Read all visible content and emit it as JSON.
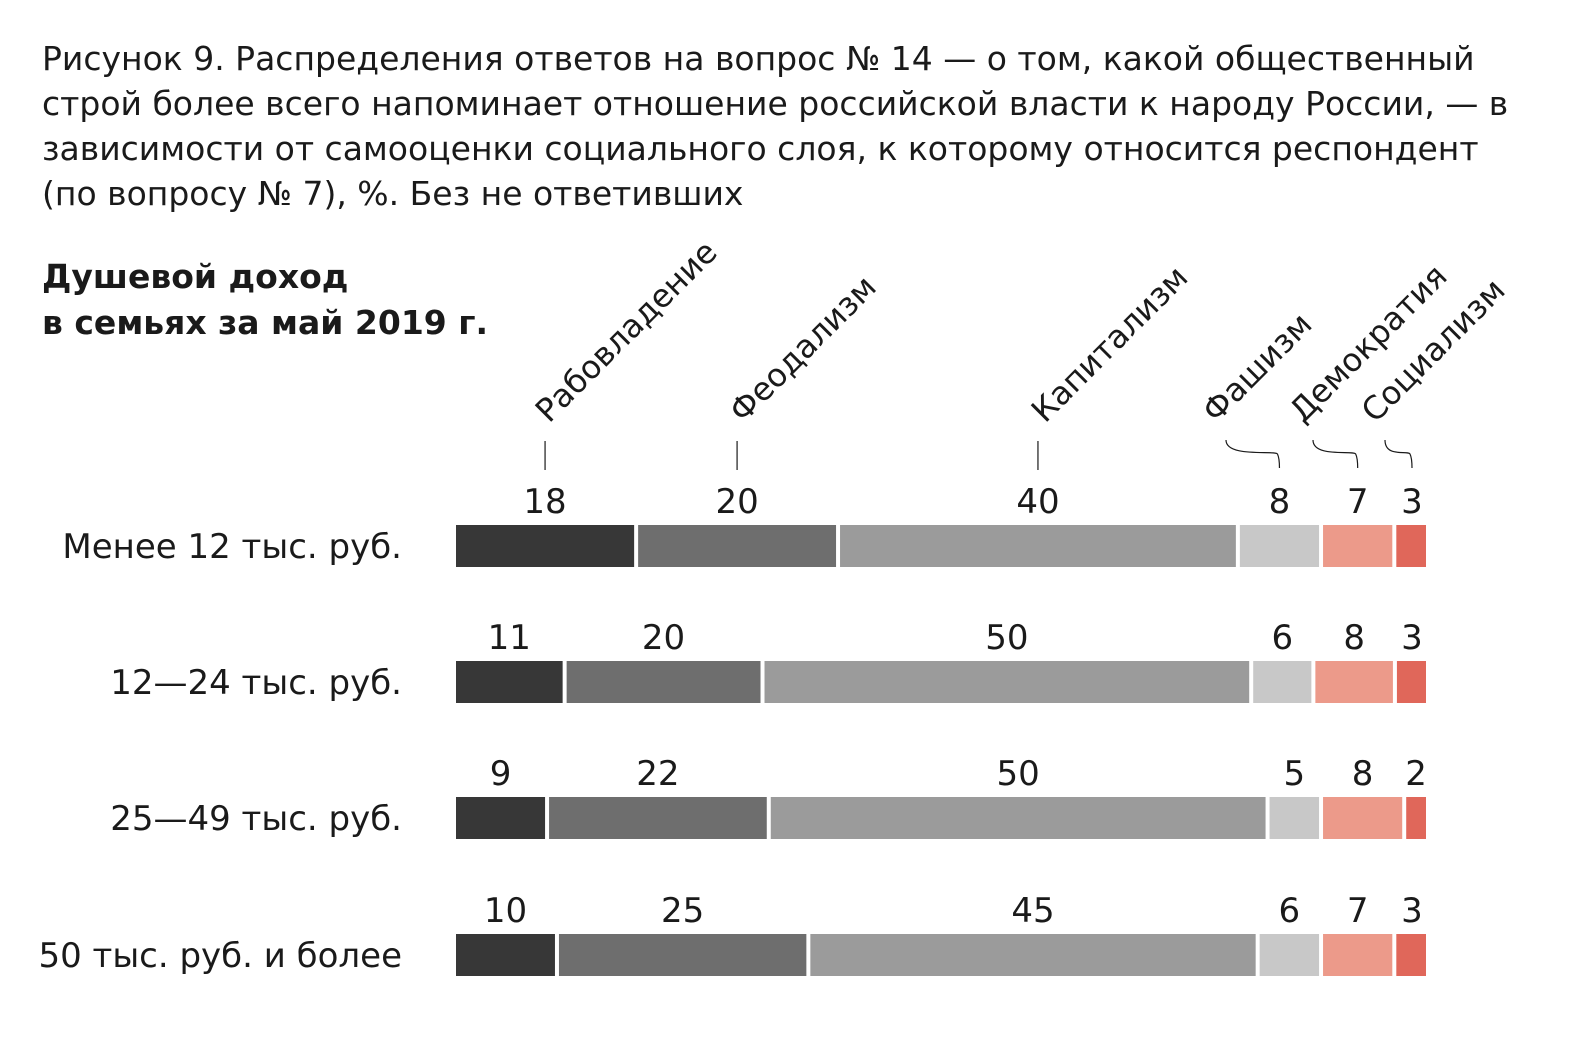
{
  "caption": "Рисунок 9. Распределения ответов на вопрос № 14 — о том, какой общественный строй более всего напоминает отношение российской власти к народу России, — в зависимости от самооценки социального слоя, к которому относится респондент (по вопросу № 7), %. Без не ответивших",
  "subtitle_line1": "Душевой доход",
  "subtitle_line2": "в семьях за май 2019 г.",
  "chart_data": {
    "type": "bar",
    "orientation": "horizontal",
    "stacked": true,
    "categories": [
      "Менее 12 тыс. руб.",
      "12—24 тыс. руб.",
      "25—49 тыс. руб.",
      "50 тыс. руб. и более"
    ],
    "series": [
      {
        "name": "Рабовладение",
        "color": "#373737",
        "values": [
          18,
          11,
          9,
          10
        ]
      },
      {
        "name": "Феодализм",
        "color": "#6e6e6e",
        "values": [
          20,
          20,
          22,
          25
        ]
      },
      {
        "name": "Капитализм",
        "color": "#9b9b9b",
        "values": [
          40,
          50,
          50,
          45
        ]
      },
      {
        "name": "Фашизм",
        "color": "#c8c8c8",
        "values": [
          8,
          6,
          5,
          6
        ]
      },
      {
        "name": "Демократия",
        "color": "#ec9a8a",
        "values": [
          7,
          8,
          8,
          7
        ]
      },
      {
        "name": "Социализм",
        "color": "#e0675a",
        "values": [
          3,
          3,
          2,
          3
        ]
      }
    ],
    "legend": "top, rotated labels above first bar"
  }
}
